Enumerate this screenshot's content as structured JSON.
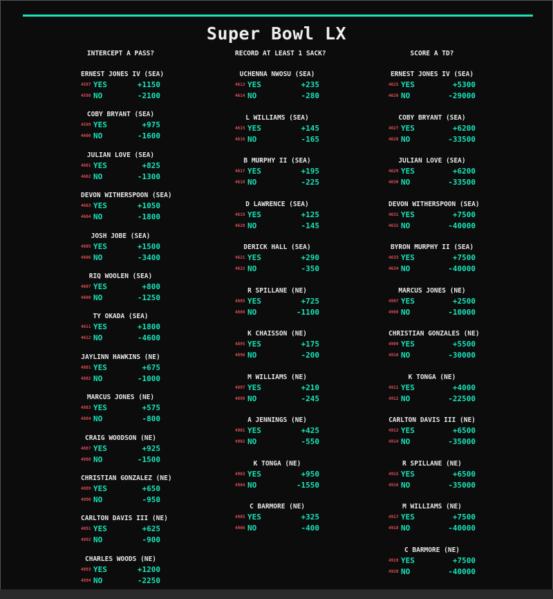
{
  "title": "Super Bowl LX",
  "colors": {
    "accent": "#19e3b8",
    "rotation": "#e0505a",
    "text": "#e8e8e8",
    "background": "#0c0c0c"
  },
  "markets": [
    {
      "question": "INTERCEPT A PASS?",
      "players": [
        {
          "name": "ERNEST JONES IV (SEA)",
          "yes_rot": "4597",
          "yes": "YES",
          "yes_odds": "+1150",
          "no_rot": "4598",
          "no": "NO",
          "no_odds": "-2100"
        },
        {
          "name": "COBY BRYANT (SEA)",
          "yes_rot": "4599",
          "yes": "YES",
          "yes_odds": "+975",
          "no_rot": "4600",
          "no": "NO",
          "no_odds": "-1600"
        },
        {
          "name": "JULIAN LOVE (SEA)",
          "yes_rot": "4601",
          "yes": "YES",
          "yes_odds": "+825",
          "no_rot": "4602",
          "no": "NO",
          "no_odds": "-1300"
        },
        {
          "name": "DEVON WITHERSPOON (SEA)",
          "yes_rot": "4603",
          "yes": "YES",
          "yes_odds": "+1050",
          "no_rot": "4604",
          "no": "NO",
          "no_odds": "-1800"
        },
        {
          "name": "JOSH JOBE (SEA)",
          "yes_rot": "4605",
          "yes": "YES",
          "yes_odds": "+1500",
          "no_rot": "4606",
          "no": "NO",
          "no_odds": "-3400"
        },
        {
          "name": "RIQ WOOLEN (SEA)",
          "yes_rot": "4607",
          "yes": "YES",
          "yes_odds": "+800",
          "no_rot": "4608",
          "no": "NO",
          "no_odds": "-1250"
        },
        {
          "name": "TY OKADA (SEA)",
          "yes_rot": "4611",
          "yes": "YES",
          "yes_odds": "+1800",
          "no_rot": "4612",
          "no": "NO",
          "no_odds": "-4600"
        },
        {
          "name": "JAYLINN HAWKINS (NE)",
          "yes_rot": "4881",
          "yes": "YES",
          "yes_odds": "+675",
          "no_rot": "4882",
          "no": "NO",
          "no_odds": "-1000"
        },
        {
          "name": "MARCUS JONES (NE)",
          "yes_rot": "4883",
          "yes": "YES",
          "yes_odds": "+575",
          "no_rot": "4884",
          "no": "NO",
          "no_odds": "-800"
        },
        {
          "name": "CRAIG WOODSON (NE)",
          "yes_rot": "4887",
          "yes": "YES",
          "yes_odds": "+925",
          "no_rot": "4888",
          "no": "NO",
          "no_odds": "-1500"
        },
        {
          "name": "CHRISTIAN GONZALEZ (NE)",
          "yes_rot": "4889",
          "yes": "YES",
          "yes_odds": "+650",
          "no_rot": "4890",
          "no": "NO",
          "no_odds": "-950"
        },
        {
          "name": "CARLTON DAVIS III (NE)",
          "yes_rot": "4891",
          "yes": "YES",
          "yes_odds": "+625",
          "no_rot": "4892",
          "no": "NO",
          "no_odds": "-900"
        },
        {
          "name": "CHARLES WOODS (NE)",
          "yes_rot": "4893",
          "yes": "YES",
          "yes_odds": "+1200",
          "no_rot": "4894",
          "no": "NO",
          "no_odds": "-2250"
        }
      ]
    },
    {
      "question": "RECORD AT LEAST 1 SACK?",
      "players": [
        {
          "name": "UCHENNA NWOSU (SEA)",
          "yes_rot": "4613",
          "yes": "YES",
          "yes_odds": "+235",
          "no_rot": "4614",
          "no": "NO",
          "no_odds": "-280"
        },
        {
          "name": "L WILLIAMS (SEA)",
          "yes_rot": "4615",
          "yes": "YES",
          "yes_odds": "+145",
          "no_rot": "4616",
          "no": "NO",
          "no_odds": "-165"
        },
        {
          "name": "B MURPHY II (SEA)",
          "yes_rot": "4617",
          "yes": "YES",
          "yes_odds": "+195",
          "no_rot": "4618",
          "no": "NO",
          "no_odds": "-225"
        },
        {
          "name": "D LAWRENCE (SEA)",
          "yes_rot": "4619",
          "yes": "YES",
          "yes_odds": "+125",
          "no_rot": "4620",
          "no": "NO",
          "no_odds": "-145"
        },
        {
          "name": "DERICK HALL (SEA)",
          "yes_rot": "4621",
          "yes": "YES",
          "yes_odds": "+290",
          "no_rot": "4622",
          "no": "NO",
          "no_odds": "-350"
        },
        {
          "name": "R SPILLANE (NE)",
          "yes_rot": "4885",
          "yes": "YES",
          "yes_odds": "+725",
          "no_rot": "4886",
          "no": "NO",
          "no_odds": "-1100"
        },
        {
          "name": "K CHAISSON (NE)",
          "yes_rot": "4895",
          "yes": "YES",
          "yes_odds": "+175",
          "no_rot": "4896",
          "no": "NO",
          "no_odds": "-200"
        },
        {
          "name": "M WILLIAMS (NE)",
          "yes_rot": "4897",
          "yes": "YES",
          "yes_odds": "+210",
          "no_rot": "4898",
          "no": "NO",
          "no_odds": "-245"
        },
        {
          "name": "A JENNINGS (NE)",
          "yes_rot": "4901",
          "yes": "YES",
          "yes_odds": "+425",
          "no_rot": "4902",
          "no": "NO",
          "no_odds": "-550"
        },
        {
          "name": "K TONGA (NE)",
          "yes_rot": "4903",
          "yes": "YES",
          "yes_odds": "+950",
          "no_rot": "4904",
          "no": "NO",
          "no_odds": "-1550"
        },
        {
          "name": "C BARMORE (NE)",
          "yes_rot": "4905",
          "yes": "YES",
          "yes_odds": "+325",
          "no_rot": "4906",
          "no": "NO",
          "no_odds": "-400"
        }
      ]
    },
    {
      "question": "SCORE A TD?",
      "players": [
        {
          "name": "ERNEST JONES IV (SEA)",
          "yes_rot": "4625",
          "yes": "YES",
          "yes_odds": "+5300",
          "no_rot": "4626",
          "no": "NO",
          "no_odds": "-29000"
        },
        {
          "name": "COBY BRYANT (SEA)",
          "yes_rot": "4627",
          "yes": "YES",
          "yes_odds": "+6200",
          "no_rot": "4628",
          "no": "NO",
          "no_odds": "-33500"
        },
        {
          "name": "JULIAN LOVE (SEA)",
          "yes_rot": "4629",
          "yes": "YES",
          "yes_odds": "+6200",
          "no_rot": "4630",
          "no": "NO",
          "no_odds": "-33500"
        },
        {
          "name": "DEVON WITHERSPOON (SEA)",
          "yes_rot": "4631",
          "yes": "YES",
          "yes_odds": "+7500",
          "no_rot": "4632",
          "no": "NO",
          "no_odds": "-40000"
        },
        {
          "name": "BYRON MURPHY II (SEA)",
          "yes_rot": "4633",
          "yes": "YES",
          "yes_odds": "+7500",
          "no_rot": "4634",
          "no": "NO",
          "no_odds": "-40000"
        },
        {
          "name": "MARCUS JONES (NE)",
          "yes_rot": "4907",
          "yes": "YES",
          "yes_odds": "+2500",
          "no_rot": "4908",
          "no": "NO",
          "no_odds": "-10000"
        },
        {
          "name": "CHRISTIAN GONZALES (NE)",
          "yes_rot": "4909",
          "yes": "YES",
          "yes_odds": "+5500",
          "no_rot": "4910",
          "no": "NO",
          "no_odds": "-30000"
        },
        {
          "name": "K TONGA (NE)",
          "yes_rot": "4911",
          "yes": "YES",
          "yes_odds": "+4000",
          "no_rot": "4912",
          "no": "NO",
          "no_odds": "-22500"
        },
        {
          "name": "CARLTON DAVIS III (NE)",
          "yes_rot": "4913",
          "yes": "YES",
          "yes_odds": "+6500",
          "no_rot": "4914",
          "no": "NO",
          "no_odds": "-35000"
        },
        {
          "name": "R SPILLANE (NE)",
          "yes_rot": "4915",
          "yes": "YES",
          "yes_odds": "+6500",
          "no_rot": "4916",
          "no": "NO",
          "no_odds": "-35000"
        },
        {
          "name": "M WILLIAMS (NE)",
          "yes_rot": "4917",
          "yes": "YES",
          "yes_odds": "+7500",
          "no_rot": "4918",
          "no": "NO",
          "no_odds": "-40000"
        },
        {
          "name": "C BARMORE (NE)",
          "yes_rot": "4919",
          "yes": "YES",
          "yes_odds": "+7500",
          "no_rot": "4920",
          "no": "NO",
          "no_odds": "-40000"
        }
      ]
    }
  ]
}
